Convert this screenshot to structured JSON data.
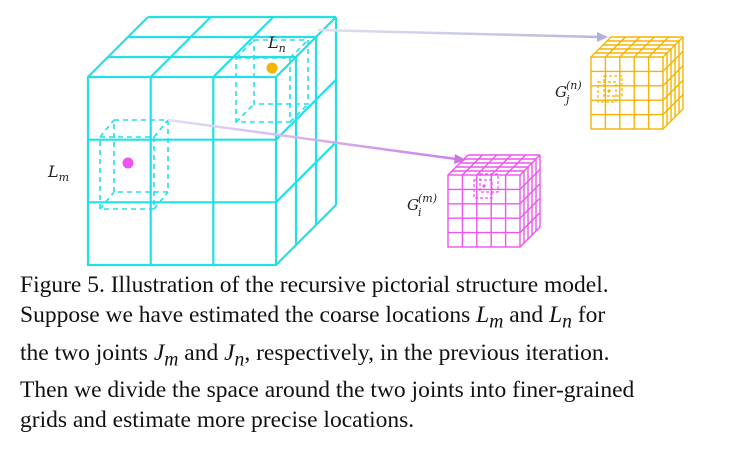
{
  "figure": {
    "labels": {
      "Lm": "L",
      "Lm_sub": "m",
      "Ln": "L",
      "Ln_sub": "n",
      "Gi": "G",
      "Gi_sub": "i",
      "Gi_sup": "(m)",
      "Gj": "G",
      "Gj_sub": "j",
      "Gj_sup": "(n)"
    },
    "colors": {
      "coarse_grid": "#22e0e6",
      "joint_m": "#ee55ee",
      "joint_n": "#f5b400",
      "fine_grid_m": "#ee55ee",
      "fine_grid_n": "#f5b400",
      "arrow": "#c8c8e8"
    }
  },
  "caption": {
    "lines": [
      "Figure 5. Illustration of the recursive pictorial structure model.",
      "Suppose we have estimated the coarse locations",
      "and",
      "for",
      "the two joints",
      "and",
      ", respectively, in the previous iteration.",
      "Then we divide the space around the two joints into finer-grained",
      "grids and estimate more precise locations."
    ],
    "math": {
      "Lm": "L",
      "Lm_sub": "m",
      "Ln": "L",
      "Ln_sub": "n",
      "Jm": "J",
      "Jm_sub": "m",
      "Jn": "J",
      "Jn_sub": "n"
    }
  }
}
